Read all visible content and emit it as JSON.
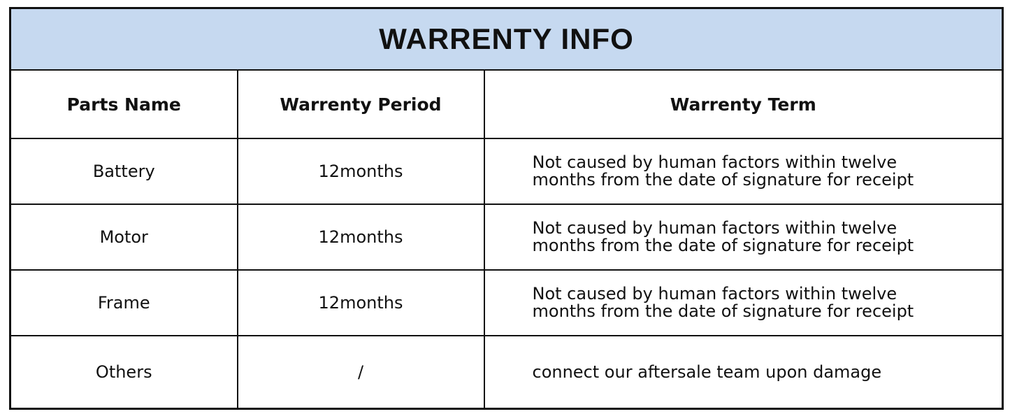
{
  "title": "WARRENTY INFO",
  "colors": {
    "header_bg": "#c6d9f0",
    "border": "#111111"
  },
  "columns": [
    "Parts Name",
    "Warrenty Period",
    "Warrenty Term"
  ],
  "rows": [
    {
      "part": "Battery",
      "period": "12months",
      "term_line1": "Not caused by human factors within twelve",
      "term_line2": "months from the date of signature for receipt"
    },
    {
      "part": "Motor",
      "period": "12months",
      "term_line1": "Not caused by human factors within twelve",
      "term_line2": "months from the date of signature for receipt"
    },
    {
      "part": "Frame",
      "period": "12months",
      "term_line1": "Not caused by human factors within twelve",
      "term_line2": "months from the date of signature for receipt"
    },
    {
      "part": "Others",
      "period": "/",
      "term_line1": "connect our aftersale team upon damage",
      "term_line2": ""
    }
  ]
}
